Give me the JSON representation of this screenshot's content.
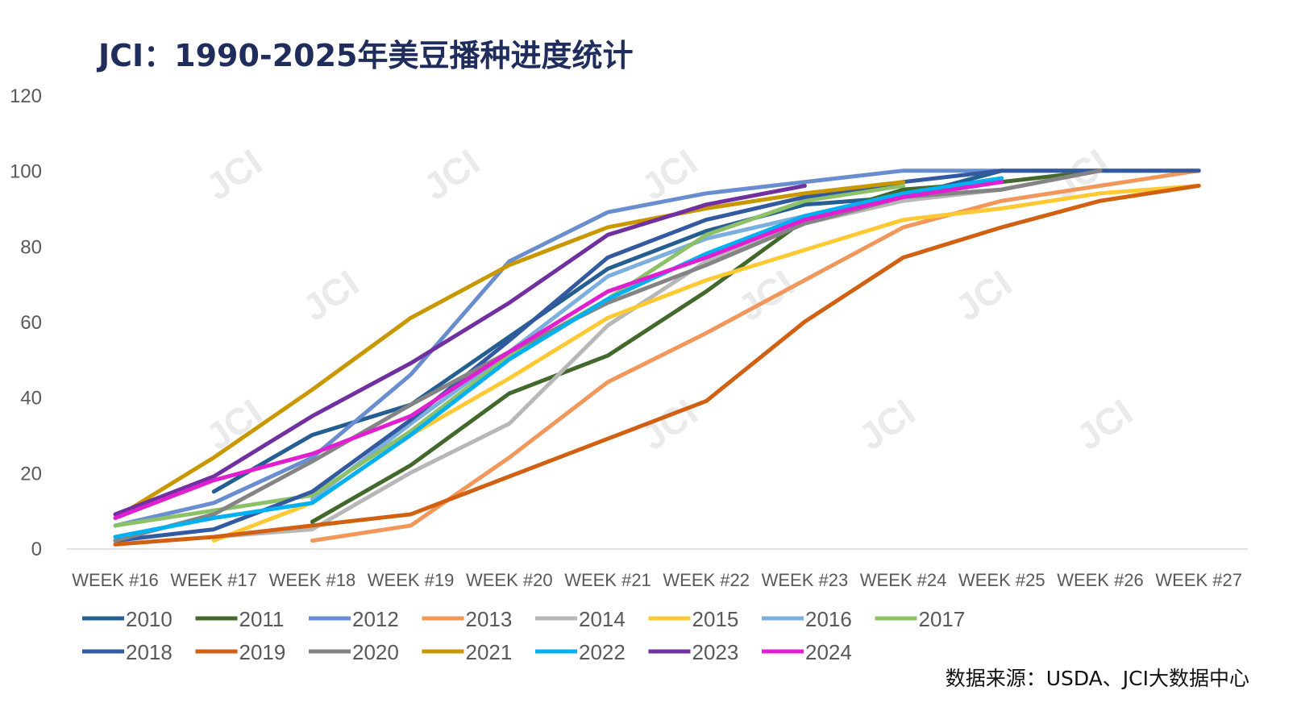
{
  "watermark": "JCI",
  "source": "数据来源：USDA、JCI大数据中心",
  "chart_data": {
    "type": "line",
    "title": "JCI：1990-2025年美豆播种进度统计",
    "xlabel": "",
    "ylabel": "",
    "ylim": [
      0,
      120
    ],
    "yticks": [
      "0",
      "20",
      "40",
      "60",
      "80",
      "100",
      "120"
    ],
    "grid": false,
    "legend_position": "bottom",
    "categories": [
      "WEEK #16",
      "WEEK #17",
      "WEEK #18",
      "WEEK #19",
      "WEEK #20",
      "WEEK #21",
      "WEEK #22",
      "WEEK #23",
      "WEEK #24",
      "WEEK #25",
      "WEEK #26",
      "WEEK #27"
    ],
    "series": [
      {
        "name": "2010",
        "color": "#255e91",
        "values": [
          null,
          15,
          30,
          38,
          56,
          74,
          84,
          91,
          93,
          100,
          null,
          null
        ]
      },
      {
        "name": "2011",
        "color": "#43682b",
        "values": [
          null,
          null,
          7,
          22,
          41,
          51,
          68,
          87,
          95,
          97,
          100,
          null
        ]
      },
      {
        "name": "2012",
        "color": "#698ed0",
        "values": [
          6,
          12,
          24,
          46,
          76,
          89,
          94,
          97,
          100,
          100,
          100,
          100
        ]
      },
      {
        "name": "2013",
        "color": "#f1975a",
        "values": [
          null,
          null,
          2,
          6,
          24,
          44,
          57,
          71,
          85,
          92,
          96,
          100
        ]
      },
      {
        "name": "2014",
        "color": "#b7b7b7",
        "values": [
          null,
          3,
          5,
          20,
          33,
          59,
          76,
          86,
          92,
          95,
          100,
          null
        ]
      },
      {
        "name": "2015",
        "color": "#ffc933",
        "values": [
          null,
          2,
          12,
          30,
          45,
          61,
          71,
          79,
          87,
          90,
          94,
          96
        ]
      },
      {
        "name": "2016",
        "color": "#7cafdd",
        "values": [
          null,
          null,
          13,
          33,
          52,
          72,
          82,
          88,
          93,
          null,
          null,
          null
        ]
      },
      {
        "name": "2017",
        "color": "#8cc168",
        "values": [
          6,
          10,
          14,
          31,
          51,
          66,
          83,
          92,
          96,
          null,
          null,
          null
        ]
      },
      {
        "name": "2018",
        "color": "#335aa1",
        "values": [
          2,
          5,
          15,
          34,
          55,
          77,
          87,
          93,
          97,
          100,
          100,
          100
        ]
      },
      {
        "name": "2019",
        "color": "#d26012",
        "values": [
          1,
          3,
          6,
          9,
          19,
          29,
          39,
          60,
          77,
          85,
          92,
          96
        ]
      },
      {
        "name": "2020",
        "color": "#848484",
        "values": [
          2,
          9,
          23,
          38,
          52,
          65,
          75,
          86,
          93,
          95,
          100,
          null
        ]
      },
      {
        "name": "2021",
        "color": "#c99800",
        "values": [
          8,
          24,
          42,
          61,
          75,
          85,
          90,
          94,
          97,
          null,
          null,
          null
        ]
      },
      {
        "name": "2022",
        "color": "#00b0f0",
        "values": [
          3,
          8,
          12,
          30,
          50,
          66,
          78,
          88,
          94,
          98,
          null,
          null
        ]
      },
      {
        "name": "2023",
        "color": "#7030a0",
        "values": [
          9,
          19,
          35,
          49,
          65,
          83,
          91,
          96,
          null,
          null,
          null,
          null
        ]
      },
      {
        "name": "2024",
        "color": "#e020d0",
        "values": [
          8,
          18,
          25,
          35,
          52,
          68,
          77,
          87,
          93,
          97,
          null,
          null
        ]
      }
    ]
  }
}
